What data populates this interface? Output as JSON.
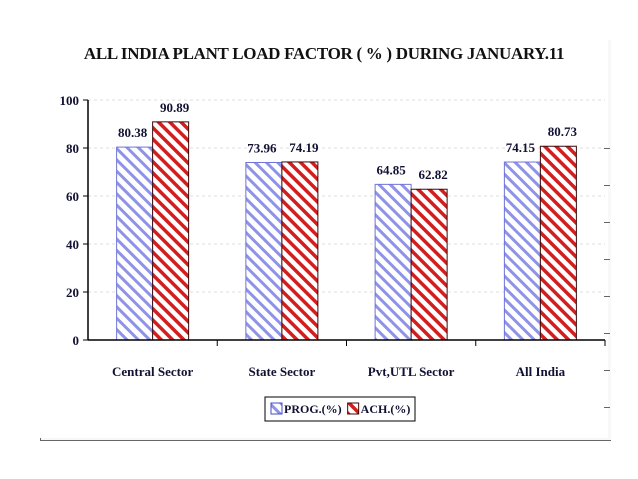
{
  "colors": {
    "prog_stripe": "#8f93e8",
    "ach_stripe": "#d21e1e",
    "axis": "#000000",
    "text": "#111133"
  },
  "chart_data": {
    "type": "bar",
    "title": "ALL INDIA PLANT LOAD FACTOR ( % ) DURING JANUARY.11",
    "categories": [
      "Central Sector",
      "State Sector",
      "Pvt,UTL Sector",
      "All India"
    ],
    "series": [
      {
        "name": "PROG.(%)",
        "values": [
          80.38,
          73.96,
          64.85,
          74.15
        ],
        "labels": [
          "80.38",
          "73.96",
          "64.85",
          "74.15"
        ]
      },
      {
        "name": "ACH.(%)",
        "values": [
          90.89,
          74.19,
          62.82,
          80.73
        ],
        "labels": [
          "90.89",
          "74.19",
          "62.82",
          "80.73"
        ]
      }
    ],
    "ylim": [
      0,
      100
    ],
    "yticks": [
      0,
      20,
      40,
      60,
      80,
      100
    ],
    "grid": true,
    "legend_position": "bottom-center"
  }
}
